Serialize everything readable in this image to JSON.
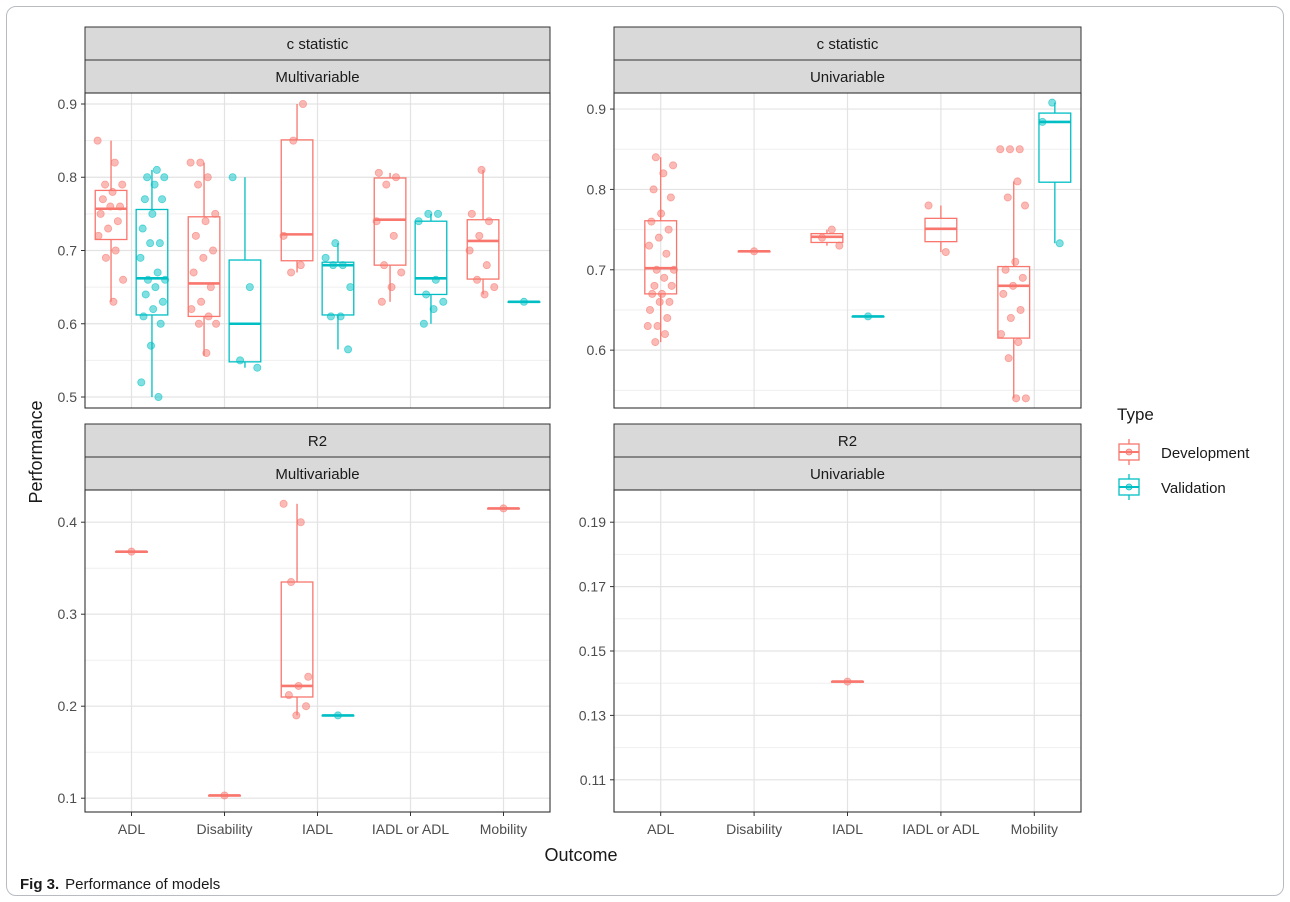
{
  "figure": {
    "caption_label": "Fig 3.",
    "caption_text": "Performance of models"
  },
  "chart_data": {
    "type": "boxplot",
    "xlabel": "Outcome",
    "ylabel": "Performance",
    "legend": {
      "title": "Type",
      "placement": "right",
      "entries": [
        {
          "name": "Development",
          "color": "#F8766D"
        },
        {
          "name": "Validation",
          "color": "#00BFC4"
        }
      ]
    },
    "categories": [
      "ADL",
      "Disability",
      "IADL",
      "IADL or ADL",
      "Mobility"
    ],
    "panels": [
      {
        "row": "c statistic",
        "col": "Multivariable",
        "ylim": [
          0.485,
          0.915
        ],
        "yticks": [
          0.5,
          0.6,
          0.7,
          0.8,
          0.9
        ],
        "boxes": [
          {
            "category": "ADL",
            "type": "Development",
            "whislo": 0.63,
            "q1": 0.715,
            "med": 0.757,
            "q3": 0.782,
            "whishi": 0.85,
            "points": [
              0.85,
              0.82,
              0.79,
              0.79,
              0.78,
              0.77,
              0.76,
              0.76,
              0.75,
              0.74,
              0.73,
              0.72,
              0.7,
              0.69,
              0.66,
              0.63
            ]
          },
          {
            "category": "ADL",
            "type": "Validation",
            "whislo": 0.5,
            "q1": 0.612,
            "med": 0.662,
            "q3": 0.756,
            "whishi": 0.81,
            "points": [
              0.81,
              0.8,
              0.8,
              0.79,
              0.77,
              0.77,
              0.75,
              0.73,
              0.71,
              0.71,
              0.69,
              0.67,
              0.66,
              0.66,
              0.65,
              0.64,
              0.63,
              0.62,
              0.61,
              0.6,
              0.57,
              0.52,
              0.5
            ]
          },
          {
            "category": "Disability",
            "type": "Development",
            "whislo": 0.556,
            "q1": 0.61,
            "med": 0.655,
            "q3": 0.746,
            "whishi": 0.82,
            "points": [
              0.82,
              0.82,
              0.8,
              0.79,
              0.75,
              0.74,
              0.72,
              0.7,
              0.69,
              0.67,
              0.65,
              0.63,
              0.62,
              0.61,
              0.6,
              0.6,
              0.56
            ]
          },
          {
            "category": "Disability",
            "type": "Validation",
            "whislo": 0.54,
            "q1": 0.548,
            "med": 0.6,
            "q3": 0.687,
            "whishi": 0.8,
            "points": [
              0.8,
              0.65,
              0.55,
              0.54
            ]
          },
          {
            "category": "IADL",
            "type": "Development",
            "whislo": 0.67,
            "q1": 0.686,
            "med": 0.722,
            "q3": 0.851,
            "whishi": 0.9,
            "points": [
              0.9,
              0.85,
              0.72,
              0.68,
              0.67
            ]
          },
          {
            "category": "IADL",
            "type": "Validation",
            "whislo": 0.565,
            "q1": 0.612,
            "med": 0.68,
            "q3": 0.684,
            "whishi": 0.71,
            "points": [
              0.71,
              0.69,
              0.68,
              0.68,
              0.65,
              0.61,
              0.61,
              0.565
            ]
          },
          {
            "category": "IADL or ADL",
            "type": "Development",
            "whislo": 0.63,
            "q1": 0.68,
            "med": 0.742,
            "q3": 0.799,
            "whishi": 0.806,
            "points": [
              0.806,
              0.8,
              0.79,
              0.74,
              0.72,
              0.68,
              0.67,
              0.65,
              0.63
            ]
          },
          {
            "category": "IADL or ADL",
            "type": "Validation",
            "whislo": 0.6,
            "q1": 0.64,
            "med": 0.662,
            "q3": 0.74,
            "whishi": 0.75,
            "points": [
              0.75,
              0.75,
              0.74,
              0.66,
              0.64,
              0.63,
              0.62,
              0.6
            ]
          },
          {
            "category": "Mobility",
            "type": "Development",
            "whislo": 0.64,
            "q1": 0.661,
            "med": 0.713,
            "q3": 0.742,
            "whishi": 0.81,
            "points": [
              0.81,
              0.75,
              0.74,
              0.72,
              0.7,
              0.68,
              0.66,
              0.65,
              0.64
            ]
          },
          {
            "category": "Mobility",
            "type": "Validation",
            "whislo": 0.63,
            "q1": 0.63,
            "med": 0.63,
            "q3": 0.63,
            "whishi": 0.63,
            "points": [
              0.63
            ]
          }
        ]
      },
      {
        "row": "c statistic",
        "col": "Univariable",
        "ylim": [
          0.528,
          0.92
        ],
        "yticks": [
          0.6,
          0.7,
          0.8,
          0.9
        ],
        "boxes": [
          {
            "category": "ADL",
            "type": "Development",
            "whislo": 0.61,
            "q1": 0.67,
            "med": 0.702,
            "q3": 0.761,
            "whishi": 0.84,
            "points": [
              0.84,
              0.83,
              0.82,
              0.8,
              0.79,
              0.77,
              0.76,
              0.75,
              0.74,
              0.73,
              0.72,
              0.7,
              0.7,
              0.69,
              0.68,
              0.68,
              0.67,
              0.67,
              0.66,
              0.66,
              0.65,
              0.64,
              0.63,
              0.63,
              0.62,
              0.61
            ]
          },
          {
            "category": "Disability",
            "type": "Development",
            "whislo": 0.723,
            "q1": 0.723,
            "med": 0.723,
            "q3": 0.723,
            "whishi": 0.723,
            "points": [
              0.723
            ]
          },
          {
            "category": "IADL",
            "type": "Development",
            "whislo": 0.73,
            "q1": 0.734,
            "med": 0.741,
            "q3": 0.745,
            "whishi": 0.75,
            "points": [
              0.75,
              0.74,
              0.73
            ]
          },
          {
            "category": "IADL",
            "type": "Validation",
            "whislo": 0.642,
            "q1": 0.642,
            "med": 0.642,
            "q3": 0.642,
            "whishi": 0.642,
            "points": [
              0.642
            ]
          },
          {
            "category": "IADL or ADL",
            "type": "Development",
            "whislo": 0.722,
            "q1": 0.735,
            "med": 0.751,
            "q3": 0.764,
            "whishi": 0.78,
            "points": [
              0.78,
              0.722
            ]
          },
          {
            "category": "Mobility",
            "type": "Development",
            "whislo": 0.54,
            "q1": 0.615,
            "med": 0.68,
            "q3": 0.704,
            "whishi": 0.81,
            "points": [
              0.85,
              0.85,
              0.85,
              0.81,
              0.79,
              0.78,
              0.71,
              0.7,
              0.69,
              0.68,
              0.67,
              0.65,
              0.64,
              0.62,
              0.61,
              0.59,
              0.54,
              0.54
            ]
          },
          {
            "category": "Mobility",
            "type": "Validation",
            "whislo": 0.733,
            "q1": 0.809,
            "med": 0.884,
            "q3": 0.895,
            "whishi": 0.908,
            "points": [
              0.908,
              0.884,
              0.733
            ]
          }
        ]
      },
      {
        "row": "R2",
        "col": "Multivariable",
        "ylim": [
          0.085,
          0.435
        ],
        "yticks": [
          0.1,
          0.2,
          0.3,
          0.4
        ],
        "boxes": [
          {
            "category": "ADL",
            "type": "Development",
            "whislo": 0.368,
            "q1": 0.368,
            "med": 0.368,
            "q3": 0.368,
            "whishi": 0.368,
            "points": [
              0.368
            ]
          },
          {
            "category": "Disability",
            "type": "Development",
            "whislo": 0.103,
            "q1": 0.103,
            "med": 0.103,
            "q3": 0.103,
            "whishi": 0.103,
            "points": [
              0.103
            ]
          },
          {
            "category": "IADL",
            "type": "Development",
            "whislo": 0.19,
            "q1": 0.21,
            "med": 0.222,
            "q3": 0.335,
            "whishi": 0.42,
            "points": [
              0.42,
              0.4,
              0.335,
              0.232,
              0.222,
              0.212,
              0.2,
              0.19
            ]
          },
          {
            "category": "IADL",
            "type": "Validation",
            "whislo": 0.19,
            "q1": 0.19,
            "med": 0.19,
            "q3": 0.19,
            "whishi": 0.19,
            "points": [
              0.19
            ]
          },
          {
            "category": "Mobility",
            "type": "Development",
            "whislo": 0.415,
            "q1": 0.415,
            "med": 0.415,
            "q3": 0.415,
            "whishi": 0.415,
            "points": [
              0.415
            ]
          }
        ]
      },
      {
        "row": "R2",
        "col": "Univariable",
        "ylim": [
          0.1,
          0.2
        ],
        "yticks": [
          0.11,
          0.13,
          0.15,
          0.17,
          0.19
        ],
        "boxes": [
          {
            "category": "IADL",
            "type": "Development",
            "whislo": 0.1405,
            "q1": 0.1405,
            "med": 0.1405,
            "q3": 0.1405,
            "whishi": 0.1405,
            "points": [
              0.1405
            ]
          }
        ]
      }
    ]
  }
}
